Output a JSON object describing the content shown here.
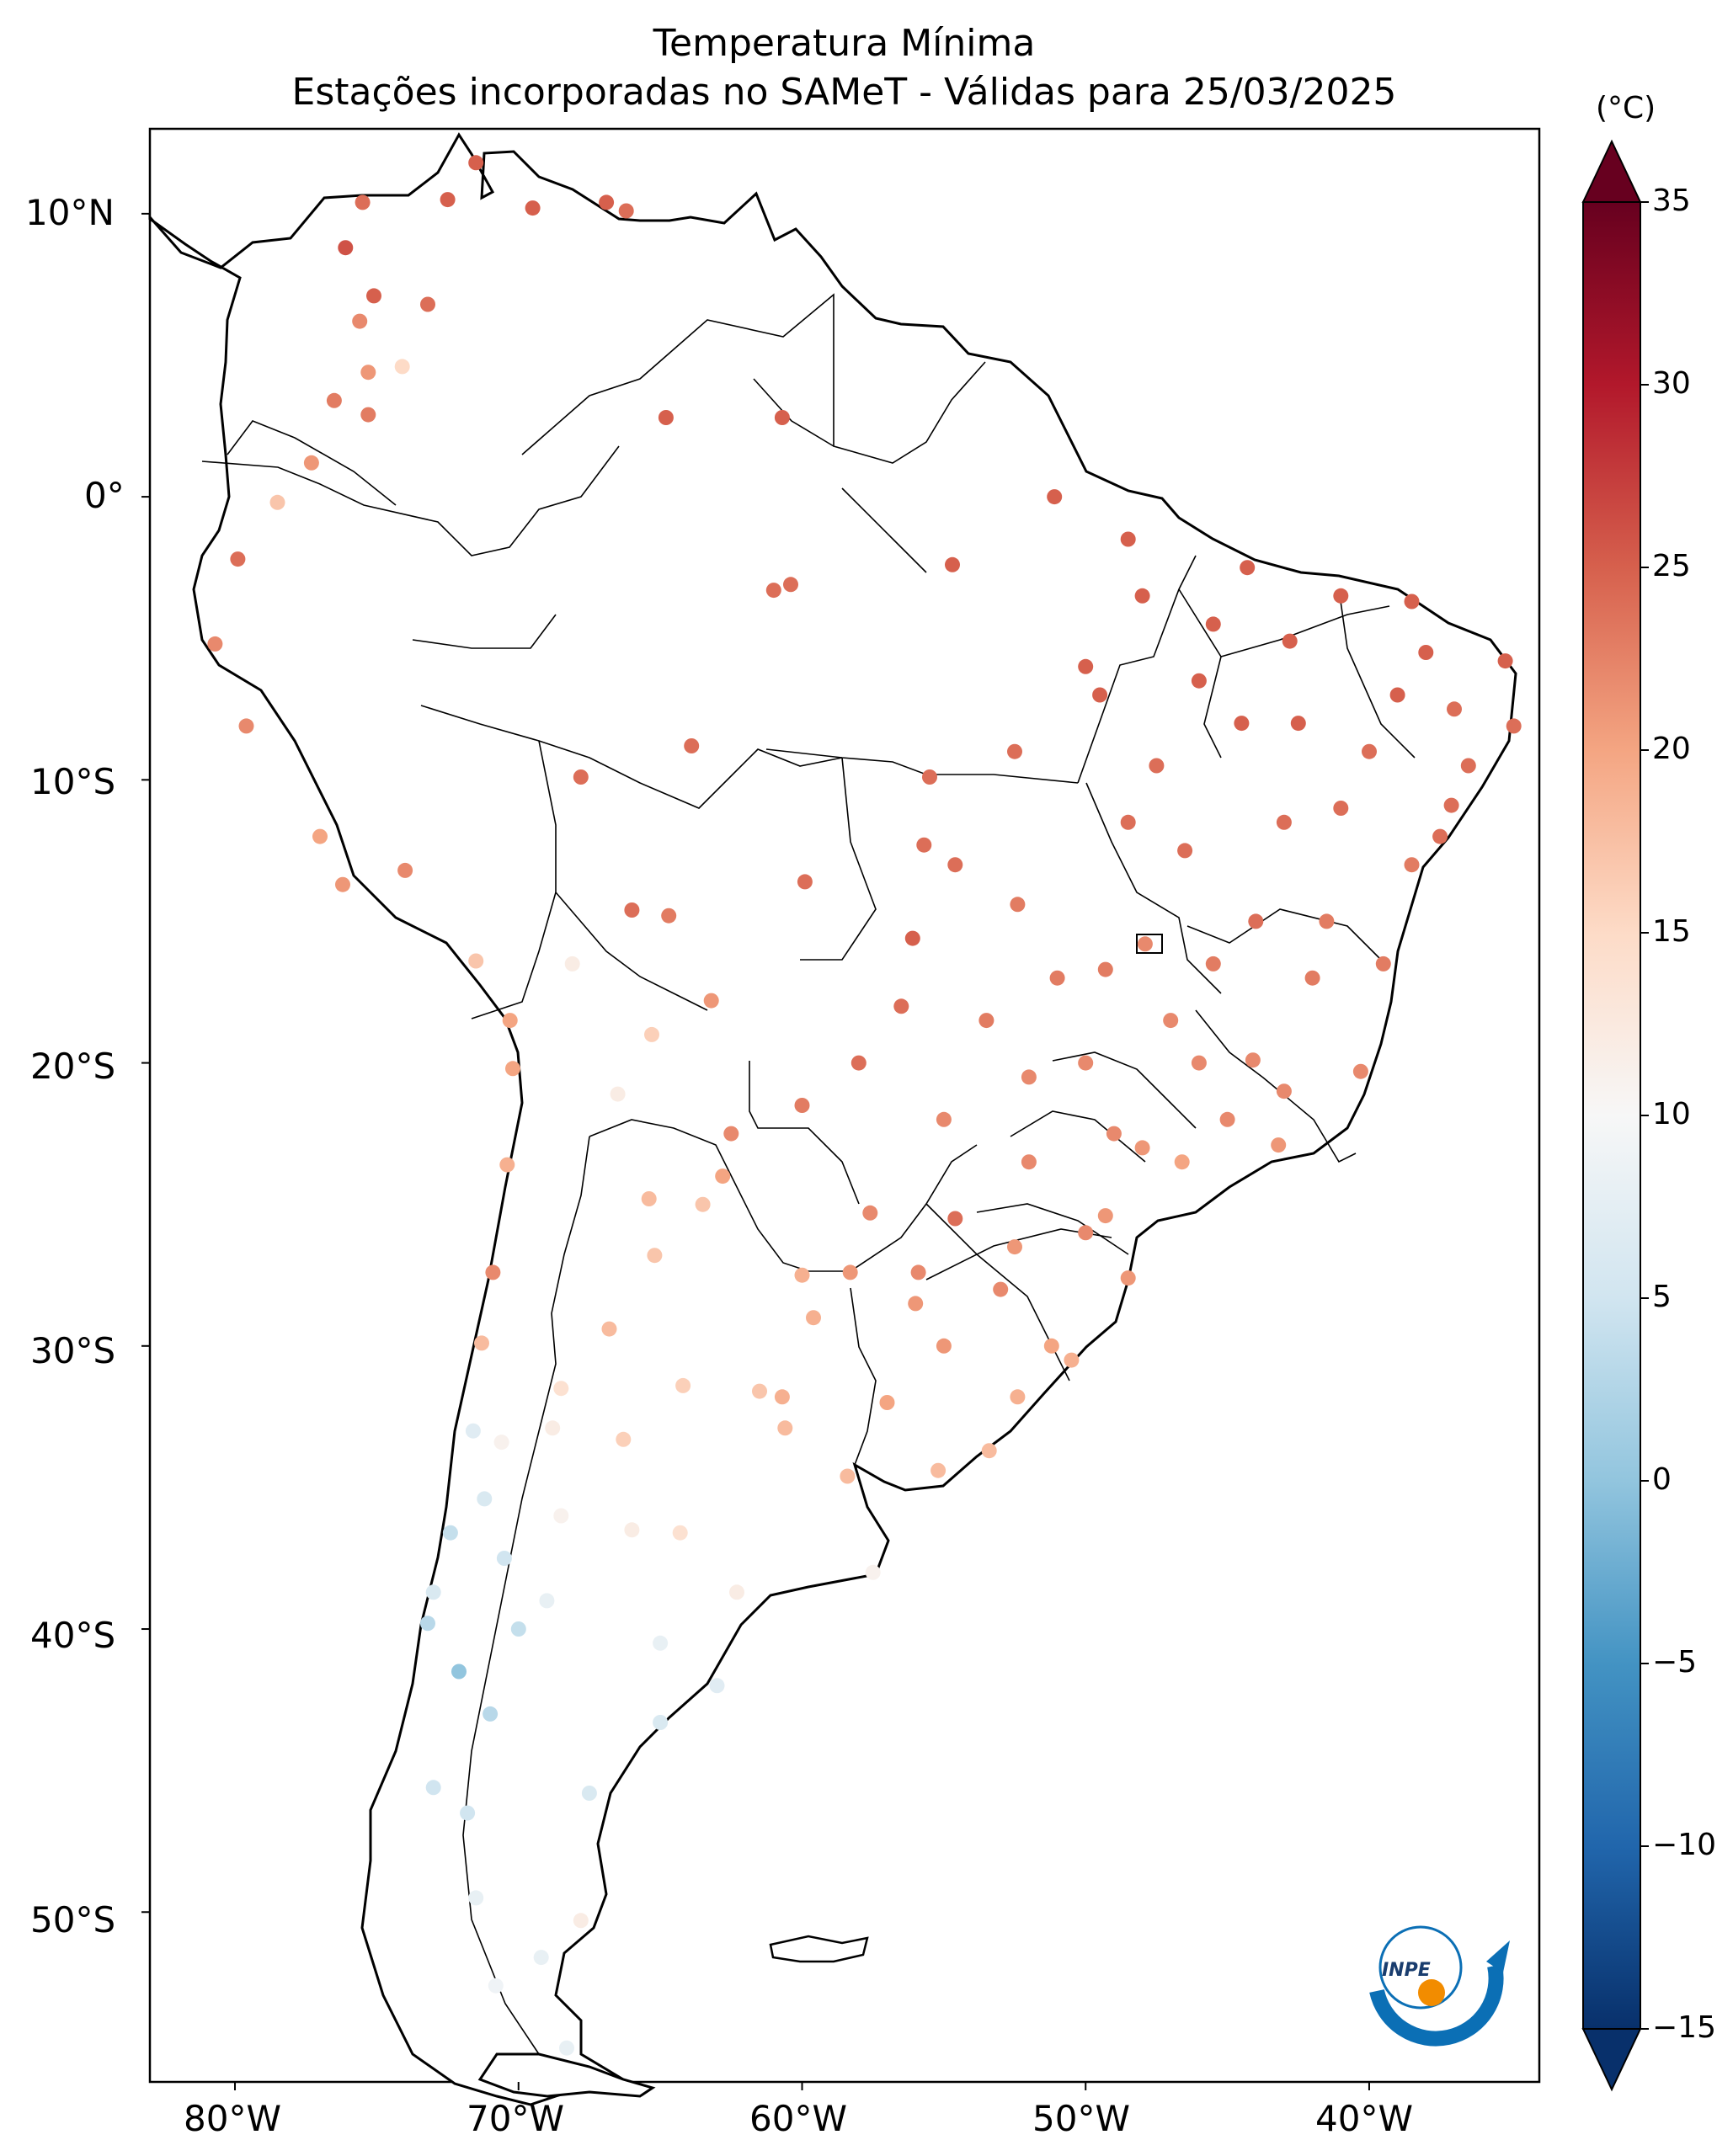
{
  "title": "Temperatura Mínima",
  "subtitle": "Estações incorporadas no SAMeT - Válidas para 25/03/2025",
  "colorbar": {
    "unit": "(°C)",
    "ticks": [
      "35",
      "30",
      "25",
      "20",
      "15",
      "10",
      "5",
      "0",
      "−5",
      "−10",
      "−15"
    ],
    "range": [
      -15,
      35
    ],
    "colors": [
      "#08306b",
      "#2166ac",
      "#4393c3",
      "#92c5de",
      "#d1e5f0",
      "#f7f7f7",
      "#fddbc7",
      "#f4a582",
      "#d6604d",
      "#b2182b",
      "#67001f"
    ]
  },
  "axes": {
    "lat_labels": [
      "10°N",
      "0°",
      "10°S",
      "20°S",
      "30°S",
      "40°S",
      "50°S"
    ],
    "lon_labels": [
      "80°W",
      "70°W",
      "60°W",
      "50°W",
      "40°W"
    ]
  },
  "logo": {
    "text": "INPE",
    "icon": "inpe-logo-icon"
  },
  "chart_data": {
    "type": "scatter",
    "title": "Temperatura Mínima",
    "subtitle": "Estações incorporadas no SAMeT - Válidas para 25/03/2025",
    "xlim": [
      -83,
      -34
    ],
    "ylim": [
      -56,
      13
    ],
    "colorbar_range": [
      -15,
      35
    ],
    "stations": [
      [
        -75.5,
        10.4,
        24
      ],
      [
        -72.5,
        10.5,
        25
      ],
      [
        -71.5,
        11.8,
        25
      ],
      [
        -69.5,
        10.2,
        25
      ],
      [
        -66.9,
        10.4,
        25
      ],
      [
        -66.2,
        10.1,
        24
      ],
      [
        -76.1,
        8.8,
        26
      ],
      [
        -75.1,
        7.1,
        25
      ],
      [
        -73.2,
        6.8,
        24
      ],
      [
        -75.6,
        6.2,
        22
      ],
      [
        -74.1,
        4.6,
        15
      ],
      [
        -75.3,
        4.4,
        21
      ],
      [
        -76.5,
        3.4,
        23
      ],
      [
        -75.3,
        2.9,
        23
      ],
      [
        -77.3,
        1.2,
        21
      ],
      [
        -78.5,
        -0.2,
        17
      ],
      [
        -79.9,
        -2.2,
        24
      ],
      [
        -80.7,
        -5.2,
        22
      ],
      [
        -79.6,
        -8.1,
        22
      ],
      [
        -77.0,
        -12.0,
        20
      ],
      [
        -76.2,
        -13.7,
        21
      ],
      [
        -74.0,
        -13.2,
        22
      ],
      [
        -71.5,
        -16.4,
        17
      ],
      [
        -70.3,
        -18.5,
        20
      ],
      [
        -70.2,
        -20.2,
        20
      ],
      [
        -70.4,
        -23.6,
        19
      ],
      [
        -70.9,
        -27.4,
        22
      ],
      [
        -71.3,
        -29.9,
        18
      ],
      [
        -71.6,
        -33.0,
        7
      ],
      [
        -70.6,
        -33.4,
        11
      ],
      [
        -71.2,
        -35.4,
        6
      ],
      [
        -72.4,
        -36.6,
        4
      ],
      [
        -73.0,
        -38.7,
        6
      ],
      [
        -73.2,
        -39.8,
        3
      ],
      [
        -72.1,
        -41.5,
        0
      ],
      [
        -73.0,
        -45.6,
        5
      ],
      [
        -71.8,
        -46.5,
        5
      ],
      [
        -70.8,
        -52.6,
        9
      ],
      [
        -68.3,
        -54.8,
        8
      ],
      [
        -67.8,
        -50.3,
        12
      ],
      [
        -65.0,
        -43.3,
        6
      ],
      [
        -67.5,
        -45.8,
        6
      ],
      [
        -64.3,
        -36.6,
        14
      ],
      [
        -62.3,
        -38.7,
        12
      ],
      [
        -61.5,
        -31.6,
        17
      ],
      [
        -60.6,
        -32.9,
        18
      ],
      [
        -58.4,
        -34.6,
        18
      ],
      [
        -57.5,
        -38.0,
        11
      ],
      [
        -60.7,
        -31.8,
        19
      ],
      [
        -64.2,
        -31.4,
        16
      ],
      [
        -65.4,
        -24.8,
        18
      ],
      [
        -65.2,
        -26.8,
        17
      ],
      [
        -68.8,
        -32.9,
        12
      ],
      [
        -66.3,
        -33.3,
        16
      ],
      [
        -68.5,
        -31.5,
        14
      ],
      [
        -66.8,
        -29.4,
        18
      ],
      [
        -62.8,
        -24.0,
        20
      ],
      [
        -59.6,
        -29.0,
        19
      ],
      [
        -57.6,
        -25.3,
        22
      ],
      [
        -55.9,
        -27.4,
        22
      ],
      [
        -54.6,
        -25.5,
        24
      ],
      [
        -58.3,
        -27.4,
        21
      ],
      [
        -63.2,
        -17.8,
        21
      ],
      [
        -64.7,
        -14.8,
        23
      ],
      [
        -66.0,
        -14.6,
        24
      ],
      [
        -68.1,
        -16.5,
        12
      ],
      [
        -65.3,
        -19.0,
        16
      ],
      [
        -66.5,
        -21.1,
        12
      ],
      [
        -60.4,
        -3.1,
        24
      ],
      [
        -63.9,
        -8.8,
        24
      ],
      [
        -67.8,
        -9.9,
        24
      ],
      [
        -64.8,
        2.8,
        25
      ],
      [
        -60.7,
        2.8,
        25
      ],
      [
        -61.0,
        -3.3,
        24
      ],
      [
        -55.5,
        -9.9,
        24
      ],
      [
        -54.6,
        -13.0,
        24
      ],
      [
        -56.1,
        -15.6,
        25
      ],
      [
        -55.7,
        -12.3,
        24
      ],
      [
        -52.4,
        -14.4,
        23
      ],
      [
        -49.3,
        -16.7,
        23
      ],
      [
        -47.9,
        -15.8,
        22
      ],
      [
        -44.1,
        -19.9,
        22
      ],
      [
        -43.2,
        -22.9,
        21
      ],
      [
        -46.6,
        -23.5,
        20
      ],
      [
        -49.3,
        -25.4,
        21
      ],
      [
        -48.5,
        -27.6,
        21
      ],
      [
        -51.2,
        -30.0,
        20
      ],
      [
        -52.4,
        -31.8,
        19
      ],
      [
        -53.4,
        -33.7,
        18
      ],
      [
        -55.2,
        -34.4,
        18
      ],
      [
        -38.5,
        -3.7,
        25
      ],
      [
        -34.9,
        -8.1,
        24
      ],
      [
        -38.5,
        -13.0,
        23
      ],
      [
        -40.3,
        -20.3,
        22
      ],
      [
        -44.3,
        -2.5,
        25
      ],
      [
        -48.5,
        -1.5,
        25
      ],
      [
        -51.1,
        0.0,
        25
      ],
      [
        -42.8,
        -5.1,
        25
      ],
      [
        -35.2,
        -5.8,
        25
      ],
      [
        -37.1,
        -10.9,
        24
      ],
      [
        -54.7,
        -2.4,
        25
      ],
      [
        -59.9,
        -13.6,
        24
      ],
      [
        -44.0,
        -15.0,
        24
      ],
      [
        -42.0,
        -17.0,
        23
      ],
      [
        -46.0,
        -20.0,
        22
      ],
      [
        -49.0,
        -22.5,
        22
      ],
      [
        -52.0,
        -23.5,
        22
      ],
      [
        -50.0,
        -26.0,
        22
      ],
      [
        -53.0,
        -28.0,
        22
      ],
      [
        -55.0,
        -30.0,
        21
      ],
      [
        -41.0,
        -11.0,
        24
      ],
      [
        -44.5,
        -8.0,
        25
      ],
      [
        -47.5,
        -9.5,
        24
      ],
      [
        -50.0,
        -6.0,
        25
      ],
      [
        -52.5,
        -9.0,
        24
      ],
      [
        -46.5,
        -12.5,
        24
      ],
      [
        -58.0,
        -20.0,
        24
      ],
      [
        -60.0,
        -21.5,
        23
      ],
      [
        -62.5,
        -22.5,
        22
      ],
      [
        -63.5,
        -25.0,
        17
      ],
      [
        -60.0,
        -27.5,
        19
      ],
      [
        -56.0,
        -28.5,
        21
      ],
      [
        -57.0,
        -32.0,
        20
      ],
      [
        -50.5,
        -30.5,
        19
      ],
      [
        -52.5,
        -26.5,
        21
      ],
      [
        -48.0,
        -23.0,
        21
      ],
      [
        -45.0,
        -22.0,
        22
      ],
      [
        -43.0,
        -21.0,
        22
      ],
      [
        -41.5,
        -15.0,
        23
      ],
      [
        -39.5,
        -16.5,
        23
      ],
      [
        -37.5,
        -12.0,
        24
      ],
      [
        -36.5,
        -9.5,
        24
      ],
      [
        -39.0,
        -7.0,
        25
      ],
      [
        -41.0,
        -3.5,
        25
      ],
      [
        -45.5,
        -4.5,
        25
      ],
      [
        -48.0,
        -3.5,
        25
      ],
      [
        -49.5,
        -7.0,
        25
      ],
      [
        -48.5,
        -11.5,
        24
      ],
      [
        -51.0,
        -17.0,
        23
      ],
      [
        -53.5,
        -18.5,
        23
      ],
      [
        -56.5,
        -18.0,
        24
      ],
      [
        -52.0,
        -20.5,
        22
      ],
      [
        -55.0,
        -22.0,
        22
      ],
      [
        -50.0,
        -20.0,
        22
      ],
      [
        -47.0,
        -18.5,
        22
      ],
      [
        -45.5,
        -16.5,
        23
      ],
      [
        -43.0,
        -11.5,
        24
      ],
      [
        -38.0,
        -5.5,
        25
      ],
      [
        -37.0,
        -7.5,
        24
      ],
      [
        -40.0,
        -9.0,
        24
      ],
      [
        -42.5,
        -8.0,
        25
      ],
      [
        -46.0,
        -6.5,
        25
      ],
      [
        -68.5,
        -36.0,
        11
      ],
      [
        -70.5,
        -37.5,
        5
      ],
      [
        -70.0,
        -40.0,
        4
      ],
      [
        -71.0,
        -43.0,
        3
      ],
      [
        -66.0,
        -36.5,
        12
      ],
      [
        -65.0,
        -40.5,
        8
      ],
      [
        -63.0,
        -42.0,
        7
      ],
      [
        -69.0,
        -39.0,
        8
      ],
      [
        -71.5,
        -49.5,
        8
      ],
      [
        -69.2,
        -51.6,
        8
      ]
    ]
  }
}
